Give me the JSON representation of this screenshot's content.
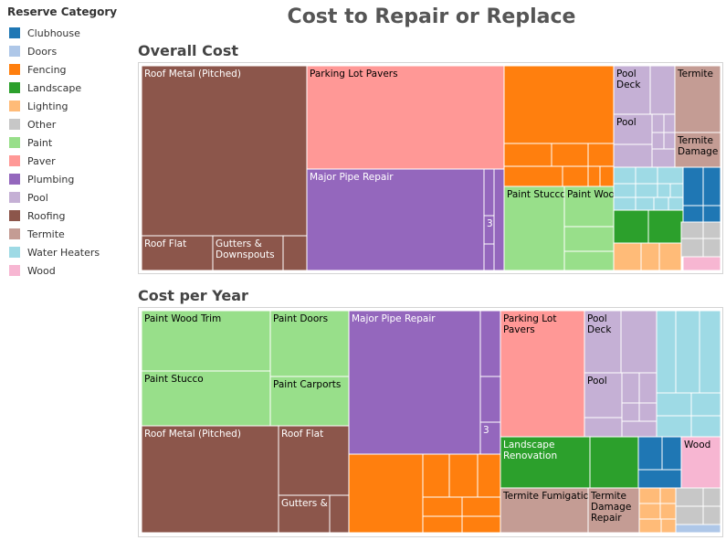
{
  "title": "Cost to Repair or Replace",
  "legend": {
    "title": "Reserve Category",
    "items": [
      {
        "name": "Clubhouse",
        "color": "#1f77b4"
      },
      {
        "name": "Doors",
        "color": "#aec7e8"
      },
      {
        "name": "Fencing",
        "color": "#ff7f0e"
      },
      {
        "name": "Landscape",
        "color": "#2ca02c"
      },
      {
        "name": "Lighting",
        "color": "#ffbb78"
      },
      {
        "name": "Other",
        "color": "#c7c7c7"
      },
      {
        "name": "Paint",
        "color": "#98df8a"
      },
      {
        "name": "Paver",
        "color": "#ff9896"
      },
      {
        "name": "Plumbing",
        "color": "#9467bd"
      },
      {
        "name": "Pool",
        "color": "#c5b0d5"
      },
      {
        "name": "Roofing",
        "color": "#8c564b"
      },
      {
        "name": "Termite",
        "color": "#c49c94"
      },
      {
        "name": "Water Heaters",
        "color": "#9edae5"
      },
      {
        "name": "Wood",
        "color": "#f7b6d2"
      }
    ]
  },
  "chart_data": [
    {
      "type": "treemap",
      "title": "Overall Cost",
      "labeled_tiles": [
        {
          "category": "Roofing",
          "label": "Roof Metal (Pitched)"
        },
        {
          "category": "Roofing",
          "label": "Roof Flat"
        },
        {
          "category": "Roofing",
          "label": "Gutters & Downspouts"
        },
        {
          "category": "Paver",
          "label": "Parking Lot Pavers"
        },
        {
          "category": "Plumbing",
          "label": "Major Pipe Repair"
        },
        {
          "category": "Plumbing",
          "label": "3"
        },
        {
          "category": "Paint",
          "label": "Paint Stucco"
        },
        {
          "category": "Paint",
          "label": "Paint Wood Trim"
        },
        {
          "category": "Pool",
          "label": "Pool Deck"
        },
        {
          "category": "Pool",
          "label": "Pool"
        },
        {
          "category": "Termite",
          "label": "Termite"
        },
        {
          "category": "Termite",
          "label": "Termite Damage"
        }
      ]
    },
    {
      "type": "treemap",
      "title": "Cost per Year",
      "labeled_tiles": [
        {
          "category": "Paint",
          "label": "Paint Wood Trim"
        },
        {
          "category": "Paint",
          "label": "Paint Doors"
        },
        {
          "category": "Paint",
          "label": "Paint Stucco"
        },
        {
          "category": "Paint",
          "label": "Paint Carports"
        },
        {
          "category": "Roofing",
          "label": "Roof Metal (Pitched)"
        },
        {
          "category": "Roofing",
          "label": "Roof Flat"
        },
        {
          "category": "Roofing",
          "label": "Gutters &"
        },
        {
          "category": "Plumbing",
          "label": "Major Pipe Repair"
        },
        {
          "category": "Plumbing",
          "label": "3"
        },
        {
          "category": "Paver",
          "label": "Parking Lot Pavers"
        },
        {
          "category": "Pool",
          "label": "Pool Deck"
        },
        {
          "category": "Pool",
          "label": "Pool"
        },
        {
          "category": "Landscape",
          "label": "Landscape Renovation"
        },
        {
          "category": "Wood",
          "label": "Wood"
        },
        {
          "category": "Termite",
          "label": "Termite Fumigation"
        },
        {
          "category": "Termite",
          "label": "Termite Damage Repair"
        }
      ]
    }
  ]
}
